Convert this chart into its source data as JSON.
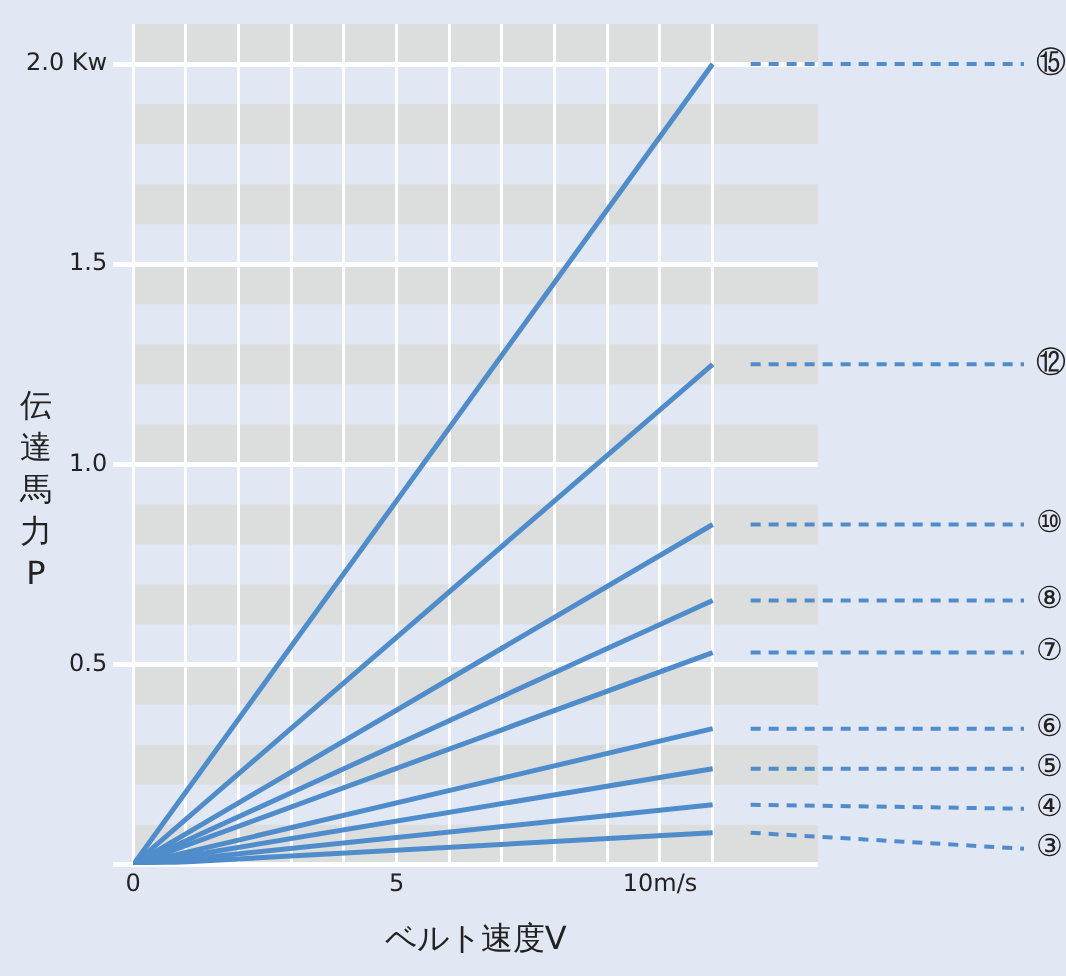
{
  "chart_data": {
    "type": "line",
    "xlabel": "ベルト速度V",
    "ylabel": "伝達馬力P",
    "x": [
      0,
      11
    ],
    "series": [
      {
        "name": "⑮",
        "color": "#4f8ccb",
        "values": [
          0,
          2.0
        ]
      },
      {
        "name": "⑫",
        "color": "#4f8ccb",
        "values": [
          0,
          1.25
        ]
      },
      {
        "name": "⑩",
        "color": "#4f8ccb",
        "values": [
          0,
          0.85
        ]
      },
      {
        "name": "⑧",
        "color": "#4f8ccb",
        "values": [
          0,
          0.66
        ]
      },
      {
        "name": "⑦",
        "color": "#4f8ccb",
        "values": [
          0,
          0.53
        ]
      },
      {
        "name": "⑥",
        "color": "#4f8ccb",
        "values": [
          0,
          0.34
        ]
      },
      {
        "name": "⑤",
        "color": "#4f8ccb",
        "values": [
          0,
          0.24
        ]
      },
      {
        "name": "④",
        "color": "#4f8ccb",
        "values": [
          0,
          0.15
        ]
      },
      {
        "name": "③",
        "color": "#4f8ccb",
        "values": [
          0,
          0.08
        ]
      }
    ],
    "xlim": [
      0,
      13
    ],
    "xticks": [
      0,
      {
        "value": 1,
        "label": null
      },
      {
        "value": 2,
        "label": null
      },
      {
        "value": 3,
        "label": null
      },
      {
        "value": 4,
        "label": null
      },
      5,
      {
        "value": 6,
        "label": null
      },
      {
        "value": 7,
        "label": null
      },
      {
        "value": 8,
        "label": null
      },
      {
        "value": 9,
        "label": null
      },
      {
        "value": 10,
        "label": "10m/s"
      },
      {
        "value": 11,
        "label": null
      }
    ],
    "ylim": [
      0,
      2.1
    ],
    "yticks": [
      {
        "value": 0,
        "label": null
      },
      0.5,
      {
        "value": 1,
        "label": "1.0"
      },
      1.5,
      {
        "value": 2,
        "label": "2.0 Kw"
      }
    ],
    "bands": [
      {
        "axis": "y",
        "from": 0,
        "to": 0.1,
        "color": "#dcdedd"
      },
      {
        "axis": "y",
        "from": 0.2,
        "to": 0.3,
        "color": "#dcdedd"
      },
      {
        "axis": "y",
        "from": 0.4,
        "to": 0.5,
        "color": "#dcdedd"
      },
      {
        "axis": "y",
        "from": 0.6,
        "to": 0.7,
        "color": "#dcdedd"
      },
      {
        "axis": "y",
        "from": 0.8,
        "to": 0.9,
        "color": "#dcdedd"
      },
      {
        "axis": "y",
        "from": 1.0,
        "to": 1.1,
        "color": "#dcdedd"
      },
      {
        "axis": "y",
        "from": 1.2,
        "to": 1.3,
        "color": "#dcdedd"
      },
      {
        "axis": "y",
        "from": 1.4,
        "to": 1.5,
        "color": "#dcdedd"
      },
      {
        "axis": "y",
        "from": 1.6,
        "to": 1.7,
        "color": "#dcdedd"
      },
      {
        "axis": "y",
        "from": 1.8,
        "to": 1.9,
        "color": "#dcdedd"
      },
      {
        "axis": "y",
        "from": 2.0,
        "to": 2.1,
        "color": "#dcdedd"
      }
    ],
    "grid": true,
    "legend": false,
    "marker": "none",
    "line_style": "solid"
  }
}
